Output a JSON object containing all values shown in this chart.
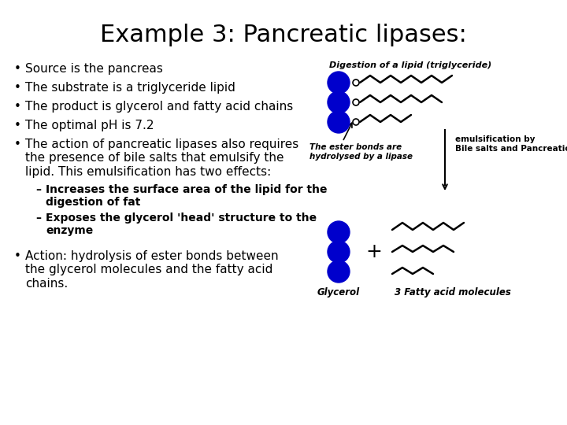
{
  "title": "Example 3: Pancreatic lipases:",
  "title_fontsize": 22,
  "background_color": "#ffffff",
  "text_color": "#000000",
  "circle_color": "#0000cc",
  "bullet_fontsize": 11,
  "sub_bullet_fontsize": 10,
  "bullets": [
    "Source is the pancreas",
    "The substrate is a triglyceride lipid",
    "The product is glycerol and fatty acid chains",
    "The optimal pH is 7.2",
    "The action of pancreatic lipases also requires\nthe presence of bile salts that emulsify the\nlipid. This emulsification has two effects:"
  ],
  "sub_bullets": [
    "Increases the surface area of the lipid for the\ndigestion of fat",
    "Exposes the glycerol 'head' structure to the\nenzyme"
  ],
  "last_bullet": "Action: hydrolysis of ester bonds between\nthe glycerol molecules and the fatty acid\nchains.",
  "digestion_label": "Digestion of a lipid (triglyceride)",
  "ester_label": "The ester bonds are\nhydrolysed by a lipase",
  "emulsification_label": "emulsification by\nBile salts and Pancreatic lipases",
  "glycerol_label": "Glycerol",
  "fatty_acid_label": "3 Fatty acid molecules",
  "plus_sign": "+"
}
